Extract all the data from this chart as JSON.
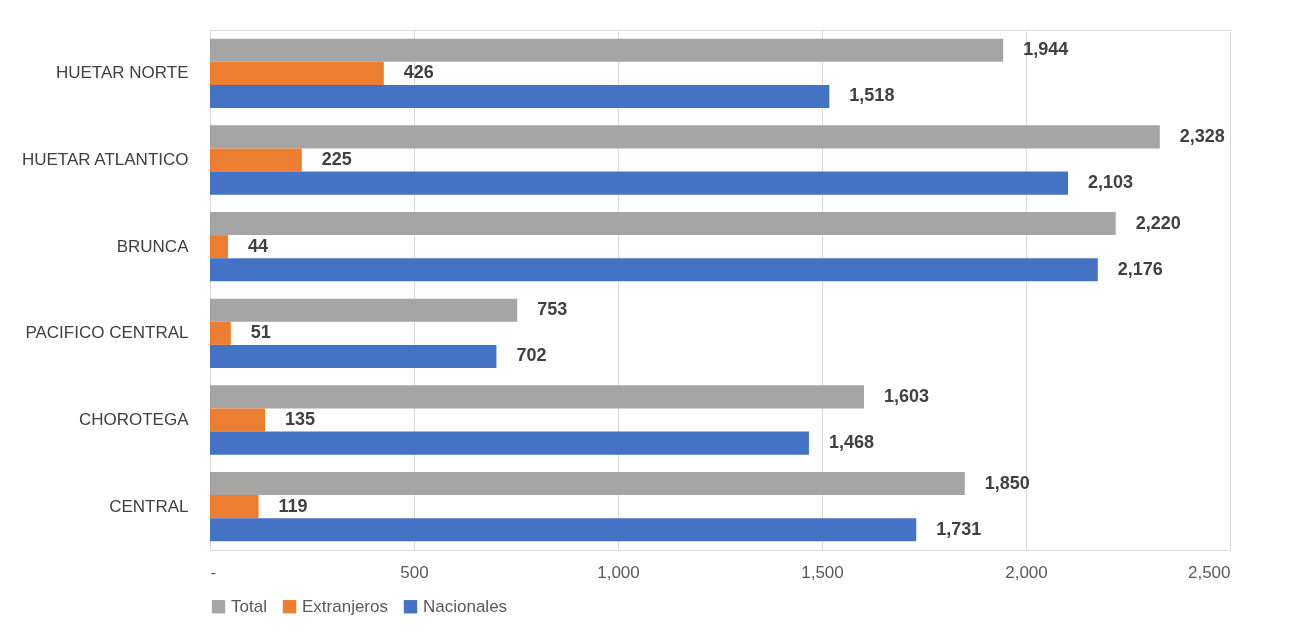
{
  "chart_data": {
    "type": "bar",
    "orientation": "horizontal",
    "categories": [
      "HUETAR NORTE",
      "HUETAR ATLANTICO",
      "BRUNCA",
      "PACIFICO CENTRAL",
      "CHOROTEGA",
      "CENTRAL"
    ],
    "series": [
      {
        "name": "Total",
        "color": "#a5a5a5",
        "values": [
          1944,
          2328,
          2220,
          753,
          1603,
          1850
        ],
        "value_labels": [
          "1,944",
          "2,328",
          "2,220",
          "753",
          "1,603",
          "1,850"
        ]
      },
      {
        "name": "Extranjeros",
        "color": "#ed7d31",
        "values": [
          426,
          225,
          44,
          51,
          135,
          119
        ],
        "value_labels": [
          "426",
          "225",
          "44",
          "51",
          "135",
          "119"
        ]
      },
      {
        "name": "Nacionales",
        "color": "#4472c4",
        "values": [
          1518,
          2103,
          2176,
          702,
          1468,
          1731
        ],
        "value_labels": [
          "1,518",
          "2,103",
          "2,176",
          "702",
          "1,468",
          "1,731"
        ]
      }
    ],
    "xlim": [
      0,
      2500
    ],
    "xticks": [
      {
        "value": 0,
        "label": "-"
      },
      500,
      {
        "value": 1000,
        "label": "1,000"
      },
      {
        "value": 1500,
        "label": "1,500"
      },
      {
        "value": 2000,
        "label": "2,000"
      },
      {
        "value": 2500,
        "label": "2,500"
      }
    ],
    "grid": "x",
    "legend": "bottom"
  }
}
